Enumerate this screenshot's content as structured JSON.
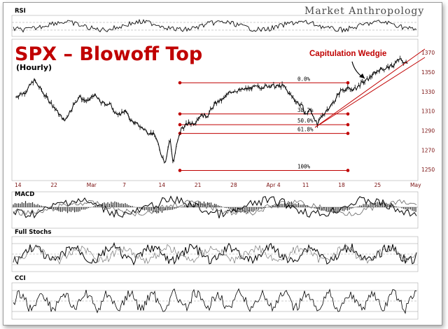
{
  "brand": "Market Anthropology",
  "chart_data": {
    "type": "line",
    "title": "SPX – Blowoff Top",
    "subtitle": "(Hourly)",
    "annotation": "Capitulation Wedgie",
    "x_tick_labels": [
      "14",
      "22",
      "Mar",
      "7",
      "14",
      "21",
      "28",
      "Apr 4",
      "11",
      "18",
      "25",
      "May"
    ],
    "y_ticks": [
      1370,
      1350,
      1330,
      1310,
      1290,
      1270,
      1250
    ],
    "ylim": [
      1240,
      1378
    ],
    "price_path": [
      [
        0,
        1325
      ],
      [
        12,
        1330
      ],
      [
        22,
        1342
      ],
      [
        34,
        1328
      ],
      [
        44,
        1317
      ],
      [
        54,
        1306
      ],
      [
        60,
        1300
      ],
      [
        68,
        1312
      ],
      [
        78,
        1325
      ],
      [
        88,
        1319
      ],
      [
        96,
        1327
      ],
      [
        106,
        1318
      ],
      [
        116,
        1317
      ],
      [
        126,
        1305
      ],
      [
        134,
        1311
      ],
      [
        142,
        1300
      ],
      [
        150,
        1296
      ],
      [
        160,
        1290
      ],
      [
        172,
        1285
      ],
      [
        178,
        1268
      ],
      [
        184,
        1257
      ],
      [
        190,
        1282
      ],
      [
        194,
        1256
      ],
      [
        198,
        1274
      ],
      [
        204,
        1292
      ],
      [
        212,
        1297
      ],
      [
        220,
        1298
      ],
      [
        228,
        1306
      ],
      [
        236,
        1305
      ],
      [
        246,
        1318
      ],
      [
        256,
        1322
      ],
      [
        264,
        1330
      ],
      [
        272,
        1331
      ],
      [
        280,
        1332
      ],
      [
        292,
        1334
      ],
      [
        304,
        1335
      ],
      [
        314,
        1336
      ],
      [
        322,
        1335
      ],
      [
        330,
        1336
      ],
      [
        338,
        1327
      ],
      [
        346,
        1320
      ],
      [
        354,
        1314
      ],
      [
        358,
        1305
      ],
      [
        362,
        1312
      ],
      [
        368,
        1304
      ],
      [
        372,
        1295
      ],
      [
        376,
        1302
      ],
      [
        382,
        1310
      ],
      [
        388,
        1315
      ],
      [
        394,
        1322
      ],
      [
        402,
        1332
      ],
      [
        410,
        1333
      ],
      [
        418,
        1332
      ],
      [
        426,
        1338
      ],
      [
        434,
        1342
      ],
      [
        442,
        1349
      ],
      [
        450,
        1353
      ],
      [
        458,
        1354
      ],
      [
        466,
        1357
      ],
      [
        472,
        1363
      ],
      [
        478,
        1361
      ],
      [
        484,
        1358
      ]
    ],
    "fib_levels": [
      {
        "label": "0.0%",
        "value": 1339
      },
      {
        "label": "38.2%",
        "value": 1307
      },
      {
        "label": "50.0%",
        "value": 1296
      },
      {
        "label": "61.8%",
        "value": 1287
      },
      {
        "label": "100%",
        "value": 1249
      }
    ],
    "indicators": [
      {
        "name": "RSI"
      },
      {
        "name": "MACD"
      },
      {
        "name": "Full Stochs"
      },
      {
        "name": "CCI"
      }
    ]
  }
}
